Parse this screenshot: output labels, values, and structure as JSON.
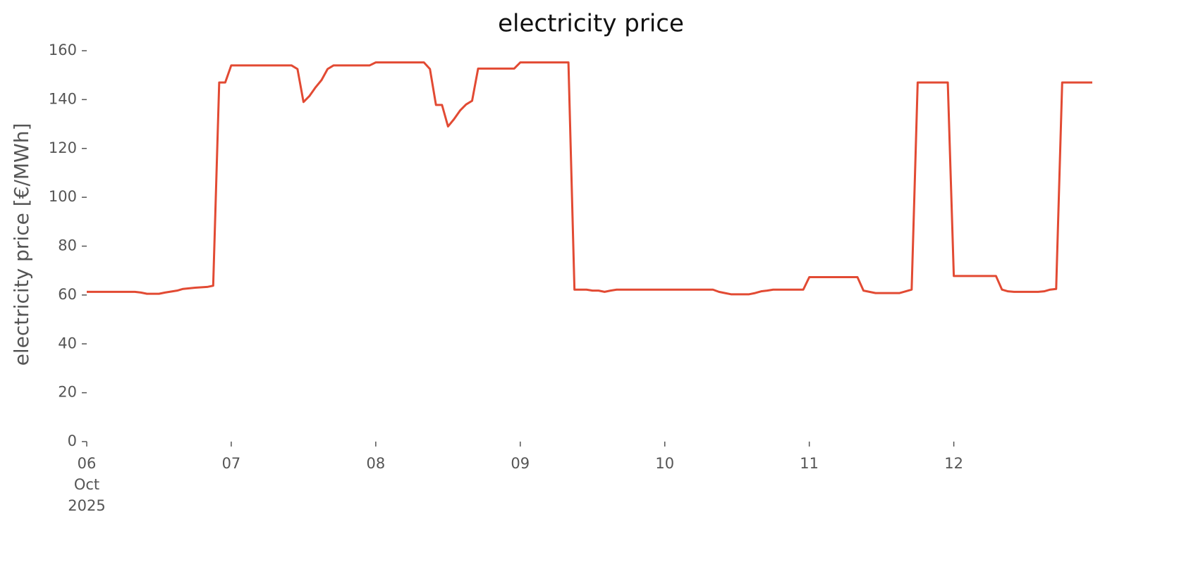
{
  "chart_data": {
    "type": "line",
    "title": "electricity price",
    "ylabel": "electricity price [€/MWh]",
    "x": [
      0,
      8,
      9,
      10,
      12,
      13,
      15,
      16,
      18,
      20,
      21,
      22,
      23,
      24,
      34,
      35,
      36,
      37,
      38,
      39,
      40,
      41,
      47,
      48,
      56,
      57,
      58,
      59,
      60,
      61,
      62,
      63,
      64,
      65,
      71,
      72,
      80,
      81,
      83,
      84,
      85,
      86,
      87,
      88,
      104,
      105,
      106,
      107,
      110,
      111,
      112,
      113,
      114,
      119,
      120,
      128,
      129,
      130,
      131,
      135,
      136,
      137,
      138,
      143,
      144,
      151,
      152,
      153,
      154,
      158,
      159,
      160,
      161,
      162,
      167
    ],
    "values": [
      61.3,
      61.3,
      61,
      60.5,
      60.5,
      61,
      61.8,
      62.5,
      63,
      63.3,
      63.8,
      147,
      147,
      154,
      154,
      152.5,
      139,
      141.5,
      145,
      148,
      152.5,
      154,
      154,
      155.2,
      155.2,
      152.5,
      137.8,
      137.8,
      129,
      132,
      135.5,
      138,
      139.5,
      152.7,
      152.7,
      155.2,
      155.2,
      62.2,
      62.2,
      61.8,
      61.8,
      61.3,
      61.8,
      62.2,
      62.2,
      61.3,
      60.8,
      60.3,
      60.3,
      60.8,
      61.5,
      61.8,
      62.2,
      62.2,
      67.3,
      67.3,
      61.8,
      61.3,
      60.8,
      60.8,
      61.5,
      62.2,
      147,
      147,
      67.8,
      67.8,
      62.2,
      61.5,
      61.3,
      61.3,
      61.5,
      62.2,
      62.5,
      147,
      147
    ],
    "color": "#e24a33",
    "xlim": [
      0,
      167
    ],
    "ylim": [
      0,
      160
    ],
    "xticks": [
      {
        "value": 0,
        "label": "06\nOct\n2025"
      },
      {
        "value": 24,
        "label": "07"
      },
      {
        "value": 48,
        "label": "08"
      },
      {
        "value": 72,
        "label": "09"
      },
      {
        "value": 96,
        "label": "10"
      },
      {
        "value": 120,
        "label": "11"
      },
      {
        "value": 144,
        "label": "12"
      }
    ],
    "yticks": [
      0,
      20,
      40,
      60,
      80,
      100,
      120,
      140,
      160
    ]
  }
}
